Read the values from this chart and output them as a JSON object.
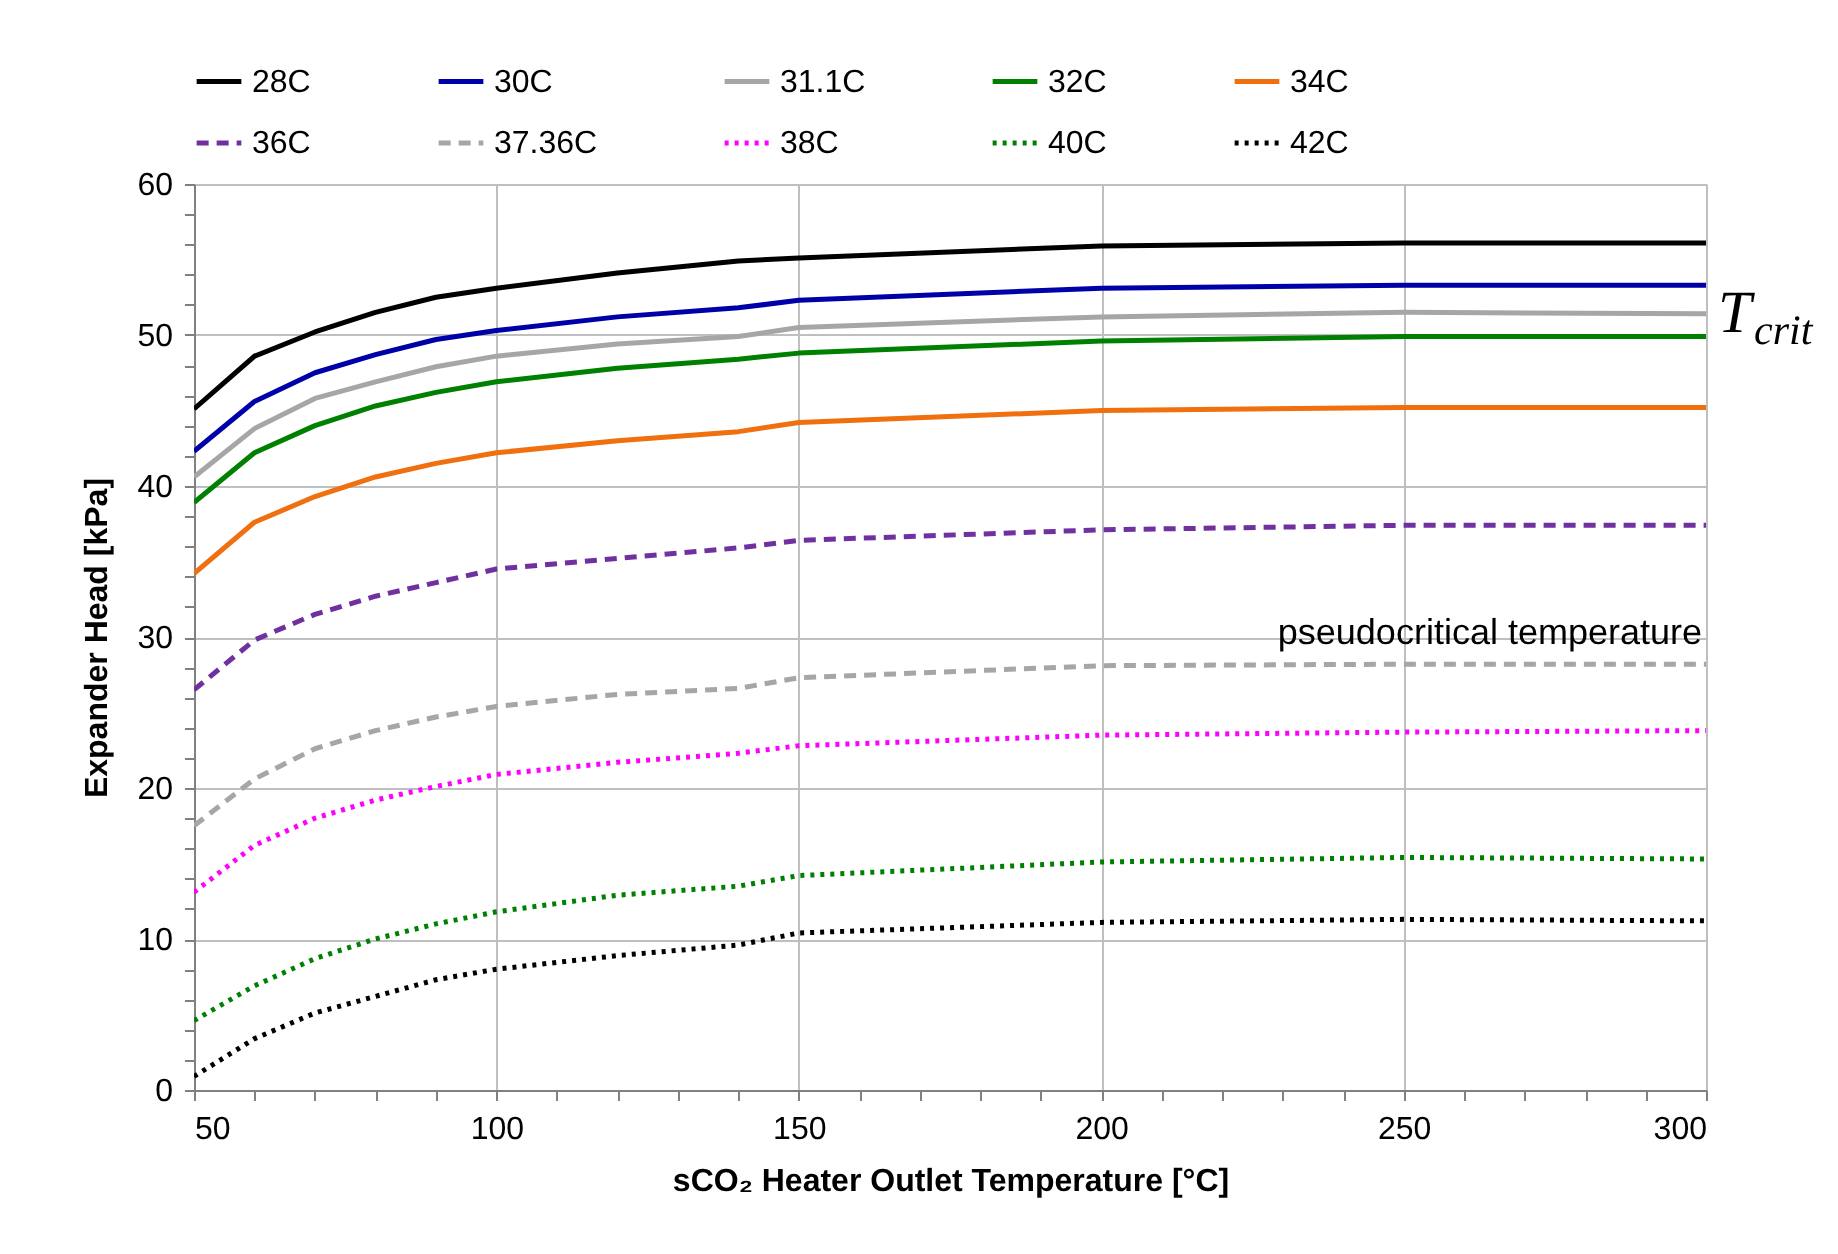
{
  "chart_data": {
    "type": "line",
    "xlabel": "sCO₂ Heater Outlet Temperature [°C]",
    "ylabel": "Expander Head [kPa]",
    "x": [
      50,
      60,
      70,
      80,
      90,
      100,
      120,
      140,
      150,
      200,
      250,
      300
    ],
    "series": [
      {
        "name": "28C",
        "color": "#000000",
        "line_style": "solid",
        "values": [
          45.1,
          48.6,
          50.2,
          51.5,
          52.5,
          53.1,
          54.1,
          54.9,
          55.1,
          55.9,
          56.1,
          56.1
        ]
      },
      {
        "name": "30C",
        "color": "#0000a8",
        "line_style": "solid",
        "values": [
          42.3,
          45.6,
          47.5,
          48.7,
          49.7,
          50.3,
          51.2,
          51.8,
          52.3,
          53.1,
          53.3,
          53.3
        ]
      },
      {
        "name": "31.1C",
        "color": "#a6a6a6",
        "line_style": "solid",
        "values": [
          40.6,
          43.8,
          45.8,
          46.9,
          47.9,
          48.6,
          49.4,
          49.9,
          50.5,
          51.2,
          51.5,
          51.4
        ]
      },
      {
        "name": "32C",
        "color": "#008000",
        "line_style": "solid",
        "values": [
          38.9,
          42.2,
          44.0,
          45.3,
          46.2,
          46.9,
          47.8,
          48.4,
          48.8,
          49.6,
          49.9,
          49.9
        ]
      },
      {
        "name": "34C",
        "color": "#f07010",
        "line_style": "solid",
        "values": [
          34.2,
          37.6,
          39.3,
          40.6,
          41.5,
          42.2,
          43.0,
          43.6,
          44.2,
          45.0,
          45.2,
          45.2
        ]
      },
      {
        "name": "36C",
        "color": "#7030a0",
        "line_style": "dashed",
        "values": [
          26.5,
          29.8,
          31.5,
          32.7,
          33.6,
          34.5,
          35.2,
          35.9,
          36.4,
          37.1,
          37.4,
          37.4
        ]
      },
      {
        "name": "37.36C",
        "color": "#a6a6a6",
        "line_style": "dashed",
        "values": [
          17.5,
          20.6,
          22.6,
          23.8,
          24.7,
          25.4,
          26.2,
          26.6,
          27.3,
          28.1,
          28.2,
          28.2
        ]
      },
      {
        "name": "38C",
        "color": "#ff00ff",
        "line_style": "dotted",
        "values": [
          13.1,
          16.2,
          18.0,
          19.2,
          20.1,
          20.9,
          21.7,
          22.3,
          22.8,
          23.5,
          23.7,
          23.8
        ]
      },
      {
        "name": "40C",
        "color": "#008000",
        "line_style": "dotted",
        "values": [
          4.6,
          6.9,
          8.7,
          10.0,
          11.0,
          11.8,
          12.9,
          13.5,
          14.2,
          15.1,
          15.4,
          15.3
        ]
      },
      {
        "name": "42C",
        "color": "#000000",
        "line_style": "dotted",
        "values": [
          0.9,
          3.4,
          5.1,
          6.2,
          7.3,
          8.0,
          8.9,
          9.6,
          10.4,
          11.1,
          11.3,
          11.2
        ]
      }
    ],
    "xlim": [
      50,
      300
    ],
    "xticks": [
      50,
      {
        "value": 60,
        "label": null
      },
      {
        "value": 70,
        "label": null
      },
      {
        "value": 80,
        "label": null
      },
      {
        "value": 90,
        "label": null
      },
      100,
      {
        "value": 110,
        "label": null
      },
      {
        "value": 120,
        "label": null
      },
      {
        "value": 130,
        "label": null
      },
      {
        "value": 140,
        "label": null
      },
      150,
      {
        "value": 160,
        "label": null
      },
      {
        "value": 170,
        "label": null
      },
      {
        "value": 180,
        "label": null
      },
      {
        "value": 190,
        "label": null
      },
      200,
      {
        "value": 210,
        "label": null
      },
      {
        "value": 220,
        "label": null
      },
      {
        "value": 230,
        "label": null
      },
      {
        "value": 240,
        "label": null
      },
      250,
      {
        "value": 260,
        "label": null
      },
      {
        "value": 270,
        "label": null
      },
      {
        "value": 280,
        "label": null
      },
      {
        "value": 290,
        "label": null
      },
      300
    ],
    "ylim": [
      0,
      60
    ],
    "yticks": [
      0,
      {
        "value": 2,
        "label": null
      },
      {
        "value": 4,
        "label": null
      },
      {
        "value": 6,
        "label": null
      },
      {
        "value": 8,
        "label": null
      },
      10,
      {
        "value": 12,
        "label": null
      },
      {
        "value": 14,
        "label": null
      },
      {
        "value": 16,
        "label": null
      },
      {
        "value": 18,
        "label": null
      },
      20,
      {
        "value": 22,
        "label": null
      },
      {
        "value": 24,
        "label": null
      },
      {
        "value": 26,
        "label": null
      },
      {
        "value": 28,
        "label": null
      },
      30,
      {
        "value": 32,
        "label": null
      },
      {
        "value": 34,
        "label": null
      },
      {
        "value": 36,
        "label": null
      },
      {
        "value": 38,
        "label": null
      },
      40,
      {
        "value": 42,
        "label": null
      },
      {
        "value": 44,
        "label": null
      },
      {
        "value": 46,
        "label": null
      },
      {
        "value": 48,
        "label": null
      },
      50,
      {
        "value": 52,
        "label": null
      },
      {
        "value": 54,
        "label": null
      },
      {
        "value": 56,
        "label": null
      },
      {
        "value": 58,
        "label": null
      },
      60
    ],
    "grid": true,
    "legend": "top",
    "marker": "none",
    "annotations": [
      {
        "text": "pseudocritical temperature",
        "x": 300,
        "y": 28.2
      },
      {
        "text": "T$_{crit}$",
        "x": 300,
        "y": 51.4
      }
    ]
  }
}
